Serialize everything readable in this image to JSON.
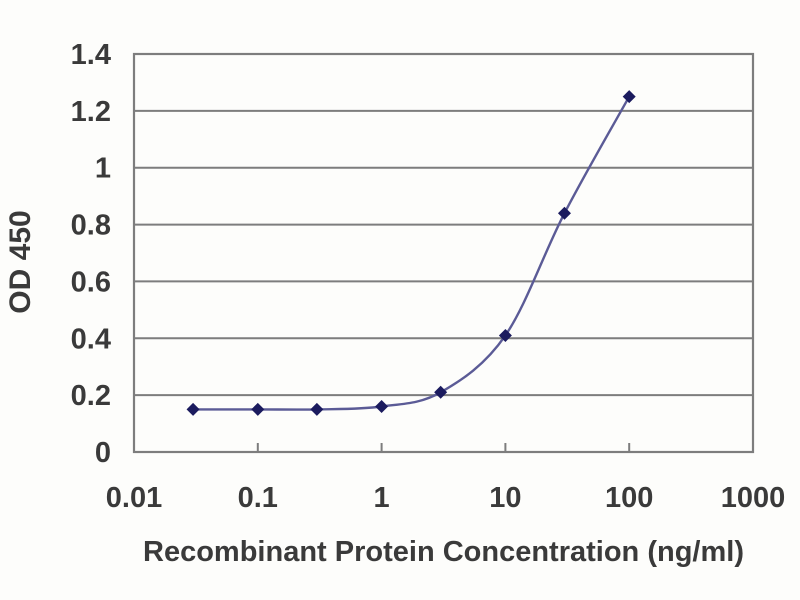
{
  "chart_data": {
    "type": "line",
    "title": "",
    "xlabel": "Recombinant Protein Concentration (ng/ml)",
    "ylabel": "OD 450",
    "x_scale": "log",
    "xlim": [
      0.01,
      1000
    ],
    "ylim": [
      0,
      1.4
    ],
    "x": [
      0.03,
      0.1,
      0.3,
      1,
      3,
      10,
      30,
      100
    ],
    "y": [
      0.15,
      0.15,
      0.15,
      0.16,
      0.21,
      0.41,
      0.84,
      1.25
    ],
    "x_ticks": [
      "0.01",
      "0.1",
      "1",
      "10",
      "100",
      "1000"
    ],
    "x_tick_values": [
      0.01,
      0.1,
      1,
      10,
      100,
      1000
    ],
    "y_ticks": [
      "0",
      "0.2",
      "0.4",
      "0.6",
      "0.8",
      "1",
      "1.2",
      "1.4"
    ],
    "y_tick_values": [
      0,
      0.2,
      0.4,
      0.6,
      0.8,
      1,
      1.2,
      1.4
    ],
    "grid": "horizontal",
    "legend": "none",
    "marker": "diamond",
    "smooth_line": true,
    "colors": {
      "background": "#fdfdfb",
      "plot_border": "#7d7d7d",
      "gridline": "#7d7d7d",
      "line": "#5b5b96",
      "marker": "#1b1b5e",
      "text": "#3a3a3a"
    }
  }
}
